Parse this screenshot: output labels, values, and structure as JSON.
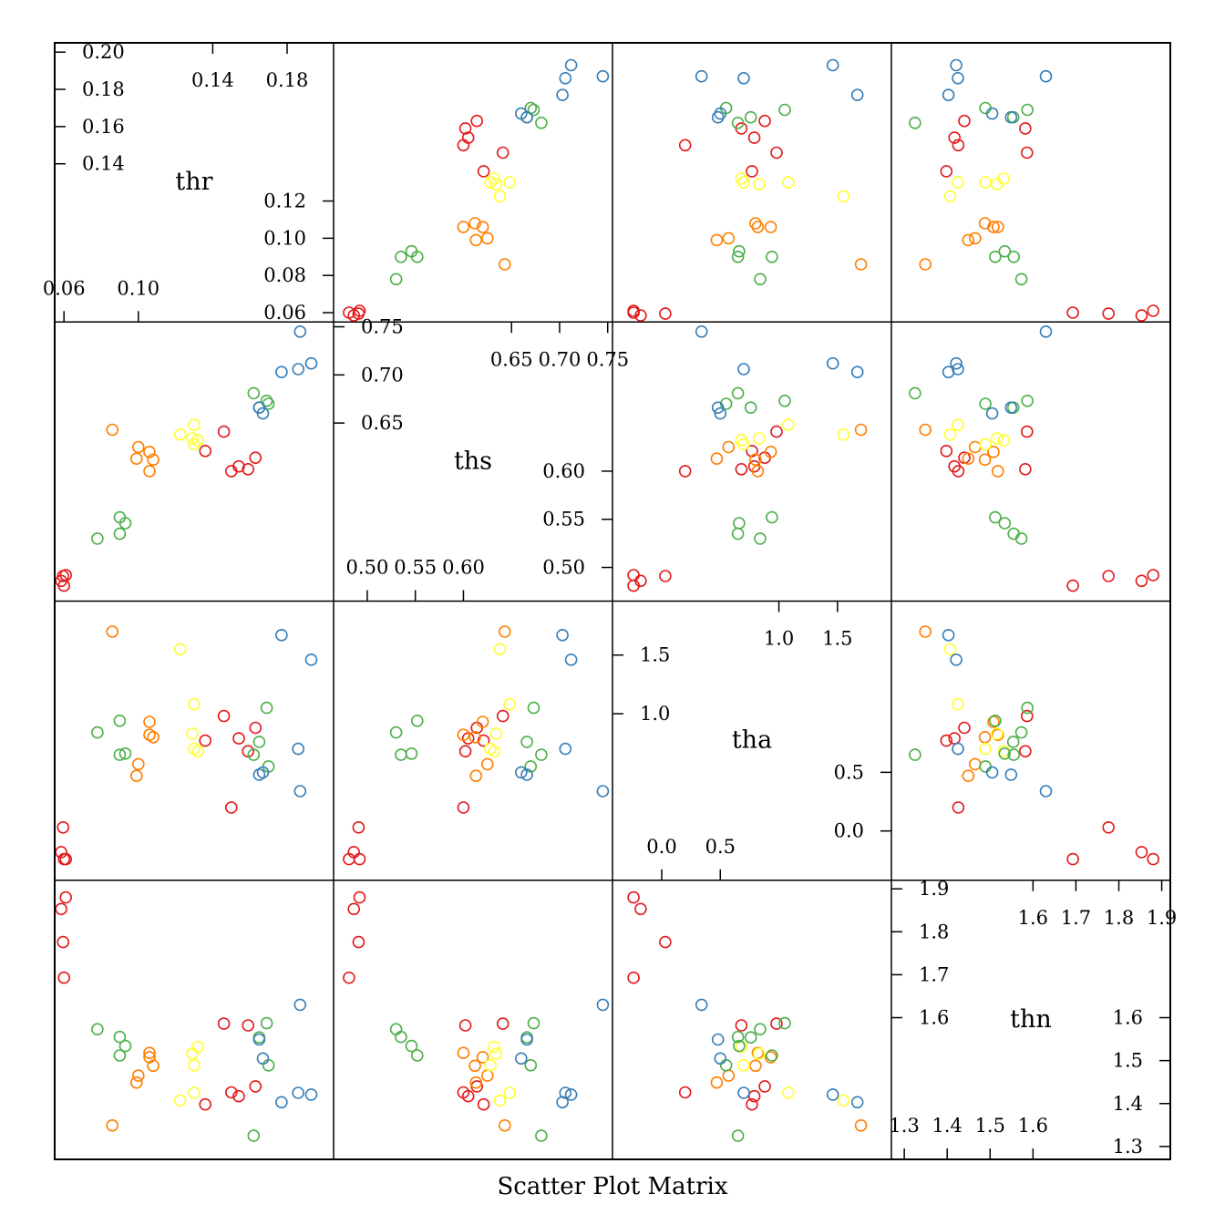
{
  "chart_data": {
    "type": "scatter",
    "title": "Scatter Plot Matrix",
    "variables": [
      "thr",
      "ths",
      "tha",
      "thn"
    ],
    "group_colors": [
      "#e41a1c",
      "#ff7f00",
      "#ffff33",
      "#4daf4a",
      "#377eb8",
      "#984ea3"
    ],
    "axis_ranges": {
      "thr": [
        0.055,
        0.205
      ],
      "ths": [
        0.465,
        0.755
      ],
      "tha": [
        -0.42,
        1.96
      ],
      "thn": [
        1.27,
        1.92
      ]
    },
    "axis_ticks": {
      "thr": {
        "top_left": [
          "0.14",
          "0.16",
          "0.18",
          "0.20"
        ],
        "top_inner": [
          "0.14",
          "0.18"
        ],
        "bottom_right": [
          "0.06",
          "0.08",
          "0.10",
          "0.12"
        ],
        "bottom_inner": [
          "0.06",
          "0.10"
        ]
      },
      "ths": {
        "top_left": [
          "0.65",
          "0.70",
          "0.75"
        ],
        "top_inner": [
          "0.65",
          "0.70",
          "0.75"
        ],
        "bottom_right": [
          "0.50",
          "0.55",
          "0.60"
        ],
        "bottom_inner": [
          "0.50",
          "0.55",
          "0.60"
        ]
      },
      "tha": {
        "top_left": [
          "1.0",
          "1.5"
        ],
        "top_inner": [
          "1.0",
          "1.5"
        ],
        "bottom_right": [
          "0.0",
          "0.5"
        ],
        "bottom_inner": [
          "0.0",
          "0.5"
        ]
      },
      "thn": {
        "top_left": [
          "1.6",
          "1.7",
          "1.8",
          "1.9"
        ],
        "top_inner": [
          "1.6",
          "1.7",
          "1.8",
          "1.9"
        ],
        "bottom_right": [
          "1.3",
          "1.4",
          "1.5",
          "1.6"
        ],
        "bottom_inner": [
          "1.3",
          "1.4",
          "1.5",
          "1.6"
        ]
      }
    },
    "points": [
      {
        "group": 0,
        "thr": 0.0585,
        "ths": 0.486,
        "tha": -0.18,
        "thn": 1.853
      },
      {
        "group": 0,
        "thr": 0.061,
        "ths": 0.492,
        "tha": -0.24,
        "thn": 1.88
      },
      {
        "group": 0,
        "thr": 0.0595,
        "ths": 0.491,
        "tha": 0.03,
        "thn": 1.776
      },
      {
        "group": 0,
        "thr": 0.06,
        "ths": 0.481,
        "tha": -0.24,
        "thn": 1.693
      },
      {
        "group": 0,
        "thr": 0.146,
        "ths": 0.641,
        "tha": 0.98,
        "thn": 1.586
      },
      {
        "group": 0,
        "thr": 0.15,
        "ths": 0.6,
        "tha": 0.2,
        "thn": 1.426
      },
      {
        "group": 0,
        "thr": 0.159,
        "ths": 0.602,
        "tha": 0.68,
        "thn": 1.582
      },
      {
        "group": 0,
        "thr": 0.163,
        "ths": 0.614,
        "tha": 0.88,
        "thn": 1.44
      },
      {
        "group": 0,
        "thr": 0.136,
        "ths": 0.621,
        "tha": 0.77,
        "thn": 1.398
      },
      {
        "group": 0,
        "thr": 0.154,
        "ths": 0.605,
        "tha": 0.79,
        "thn": 1.417
      },
      {
        "group": 1,
        "thr": 0.108,
        "ths": 0.612,
        "tha": 0.8,
        "thn": 1.488
      },
      {
        "group": 1,
        "thr": 0.106,
        "ths": 0.62,
        "tha": 0.93,
        "thn": 1.508
      },
      {
        "group": 1,
        "thr": 0.106,
        "ths": 0.6,
        "tha": 0.82,
        "thn": 1.518
      },
      {
        "group": 1,
        "thr": 0.099,
        "ths": 0.613,
        "tha": 0.47,
        "thn": 1.449
      },
      {
        "group": 1,
        "thr": 0.086,
        "ths": 0.643,
        "tha": 1.7,
        "thn": 1.349
      },
      {
        "group": 1,
        "thr": 0.1,
        "ths": 0.625,
        "tha": 0.57,
        "thn": 1.465
      },
      {
        "group": 2,
        "thr": 0.13,
        "ths": 0.648,
        "tha": 1.08,
        "thn": 1.425
      },
      {
        "group": 2,
        "thr": 0.129,
        "ths": 0.634,
        "tha": 0.83,
        "thn": 1.516
      },
      {
        "group": 2,
        "thr": 0.13,
        "ths": 0.628,
        "tha": 0.7,
        "thn": 1.489
      },
      {
        "group": 2,
        "thr": 0.132,
        "ths": 0.632,
        "tha": 0.68,
        "thn": 1.532
      },
      {
        "group": 2,
        "thr": 0.1225,
        "ths": 0.638,
        "tha": 1.55,
        "thn": 1.407
      },
      {
        "group": 3,
        "thr": 0.093,
        "ths": 0.546,
        "tha": 0.66,
        "thn": 1.534
      },
      {
        "group": 3,
        "thr": 0.09,
        "ths": 0.535,
        "tha": 0.65,
        "thn": 1.555
      },
      {
        "group": 3,
        "thr": 0.078,
        "ths": 0.53,
        "tha": 0.84,
        "thn": 1.573
      },
      {
        "group": 3,
        "thr": 0.09,
        "ths": 0.552,
        "tha": 0.94,
        "thn": 1.512
      },
      {
        "group": 3,
        "thr": 0.169,
        "ths": 0.673,
        "tha": 1.05,
        "thn": 1.587
      },
      {
        "group": 3,
        "thr": 0.165,
        "ths": 0.666,
        "tha": 0.76,
        "thn": 1.554
      },
      {
        "group": 3,
        "thr": 0.17,
        "ths": 0.67,
        "tha": 0.55,
        "thn": 1.489
      },
      {
        "group": 3,
        "thr": 0.162,
        "ths": 0.681,
        "tha": 0.65,
        "thn": 1.325
      },
      {
        "group": 4,
        "thr": 0.167,
        "ths": 0.66,
        "tha": 0.5,
        "thn": 1.505
      },
      {
        "group": 4,
        "thr": 0.165,
        "ths": 0.666,
        "tha": 0.48,
        "thn": 1.549
      },
      {
        "group": 4,
        "thr": 0.193,
        "ths": 0.712,
        "tha": 1.46,
        "thn": 1.421
      },
      {
        "group": 4,
        "thr": 0.177,
        "ths": 0.703,
        "tha": 1.67,
        "thn": 1.403
      },
      {
        "group": 4,
        "thr": 0.186,
        "ths": 0.706,
        "tha": 0.7,
        "thn": 1.425
      },
      {
        "group": 4,
        "thr": 0.187,
        "ths": 0.745,
        "tha": 0.34,
        "thn": 1.63
      }
    ]
  }
}
